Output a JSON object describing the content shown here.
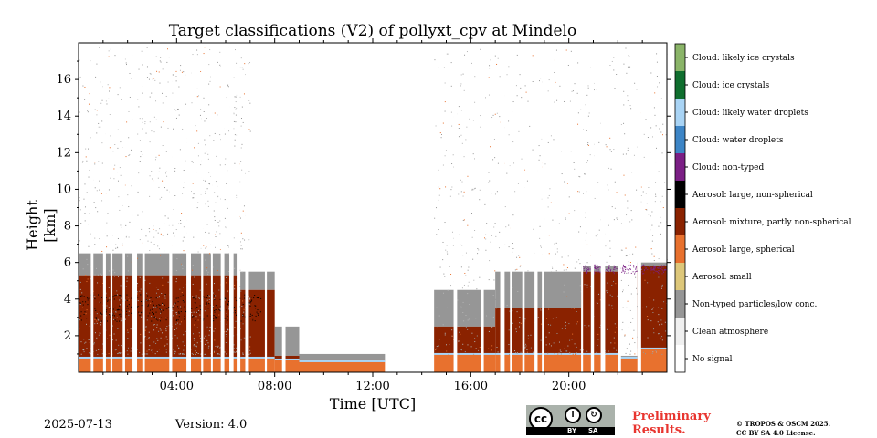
{
  "chart_data": {
    "type": "heatmap",
    "title": "Target classifications (V2) of pollyxt_cpv at Mindelo",
    "xlabel": "Time [UTC]",
    "ylabel": "Height [km]",
    "xlim_hours": [
      0,
      24
    ],
    "ylim_km": [
      0,
      18
    ],
    "x_ticks": [
      "04:00",
      "08:00",
      "12:00",
      "16:00",
      "20:00"
    ],
    "x_tick_hours": [
      4,
      8,
      12,
      16,
      20
    ],
    "y_ticks": [
      "2",
      "4",
      "6",
      "8",
      "10",
      "12",
      "14",
      "16"
    ],
    "y_tick_values": [
      2,
      4,
      6,
      8,
      10,
      12,
      14,
      16
    ],
    "classes": [
      {
        "label": "No signal",
        "color": "#ffffff"
      },
      {
        "label": "Clean atmosphere",
        "color": "#f0f0f0"
      },
      {
        "label": "Non-typed particles/low conc.",
        "color": "#969696"
      },
      {
        "label": "Aerosol: small",
        "color": "#ddc77a"
      },
      {
        "label": "Aerosol: large, spherical",
        "color": "#e8712e"
      },
      {
        "label": "Aerosol: mixture, partly non-spherical",
        "color": "#8a2200"
      },
      {
        "label": "Aerosol: large, non-spherical",
        "color": "#000000"
      },
      {
        "label": "Cloud: non-typed",
        "color": "#7b1f85"
      },
      {
        "label": "Cloud: water droplets",
        "color": "#3d85c6"
      },
      {
        "label": "Cloud: likely water droplets",
        "color": "#a9d4f5"
      },
      {
        "label": "Cloud: ice crystals",
        "color": "#0f6e2e"
      },
      {
        "label": "Cloud: likely ice crystals",
        "color": "#8ab468"
      }
    ],
    "segments": [
      {
        "start": 0.0,
        "end": 6.5,
        "surface_top": 0.8,
        "mixture_top": 5.3,
        "nontyped_top": 6.5
      },
      {
        "start": 6.6,
        "end": 8.0,
        "surface_top": 0.8,
        "mixture_top": 4.5,
        "nontyped_top": 5.5
      },
      {
        "start": 8.0,
        "end": 9.0,
        "surface_top": 0.7,
        "mixture_top": 0.9,
        "nontyped_top": 2.5
      },
      {
        "start": 9.0,
        "end": 12.5,
        "surface_top": 0.6,
        "mixture_top": 0.7,
        "nontyped_top": 1.0
      },
      {
        "start": 14.5,
        "end": 17.0,
        "surface_top": 1.0,
        "mixture_top": 2.5,
        "nontyped_top": 4.5
      },
      {
        "start": 17.0,
        "end": 20.5,
        "surface_top": 1.0,
        "mixture_top": 3.5,
        "nontyped_top": 5.5
      },
      {
        "start": 20.5,
        "end": 22.0,
        "surface_top": 1.0,
        "mixture_top": 5.5,
        "nontyped_top": 5.8
      },
      {
        "start": 22.0,
        "end": 22.8,
        "surface_top": 0.8,
        "mixture_top": 0.8,
        "nontyped_top": 0.9
      },
      {
        "start": 22.8,
        "end": 24.0,
        "surface_top": 1.3,
        "mixture_top": 5.8,
        "nontyped_top": 6.0
      }
    ],
    "no_signal_gap": [
      12.5,
      14.5
    ]
  },
  "footer": {
    "date": "2025-07-13",
    "version": "Version: 4.0",
    "preliminary_line1": "Preliminary",
    "preliminary_line2": "Results.",
    "copyright_line1": "© TROPOS & OSCM 2025.",
    "copyright_line2": "CC BY SA 4.0 License.",
    "cc_badge": {
      "cc": "cc",
      "by": "BY",
      "sa": "SA"
    }
  }
}
